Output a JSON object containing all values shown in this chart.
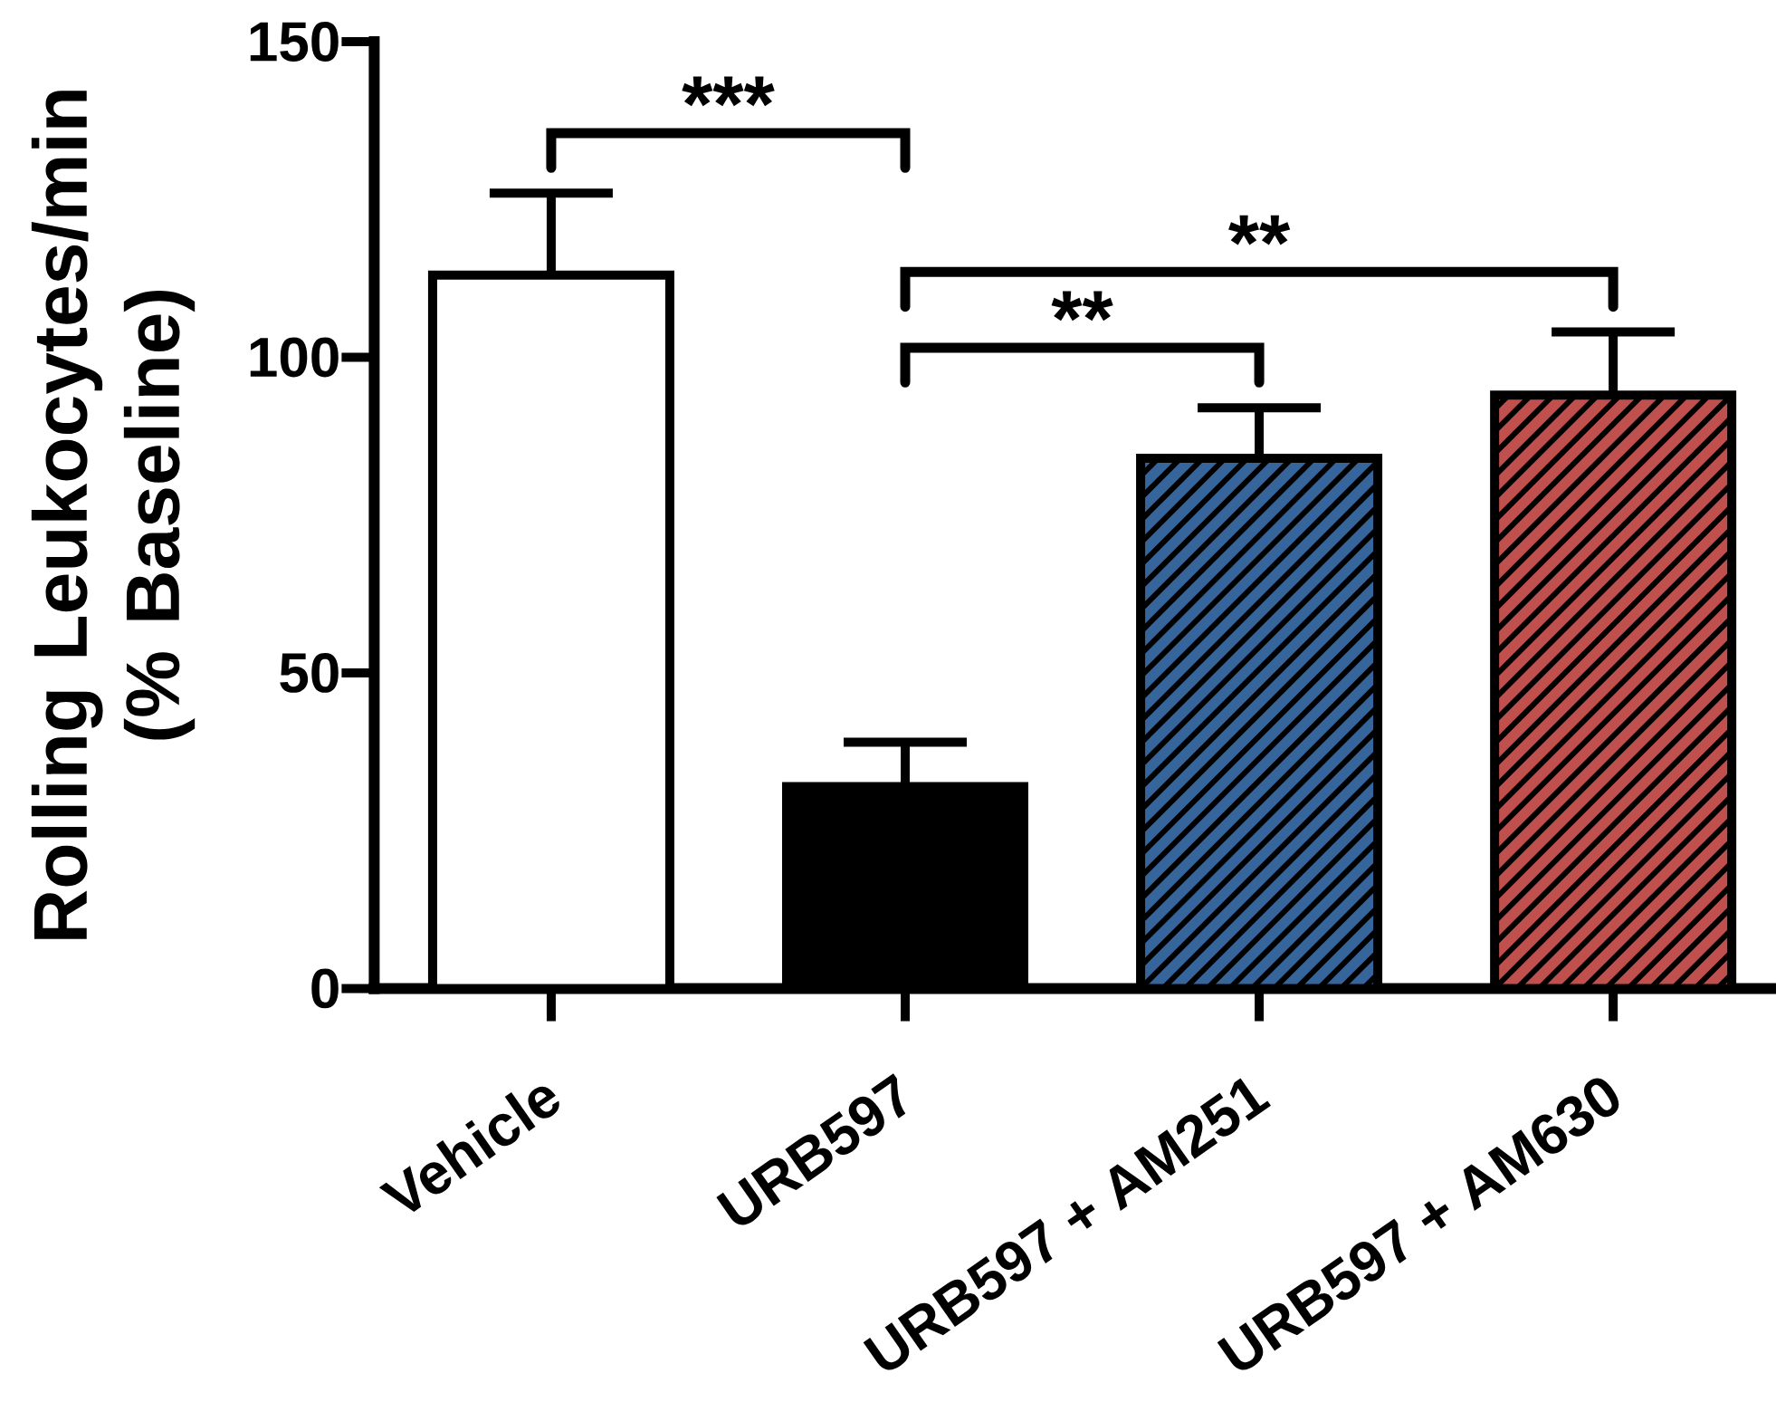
{
  "chart_data": {
    "type": "bar",
    "ylabel": "Rolling Leukocytes/min (% Baseline)",
    "categories": [
      "Vehicle",
      "URB597",
      "URB597 + AM251",
      "URB597 + AM630"
    ],
    "values": [
      113,
      32,
      84,
      94
    ],
    "colors": [
      "#ffffff",
      "#000000",
      "#35659a",
      "#c0504d"
    ],
    "errors": [
      [
        113,
        126
      ],
      [
        32,
        39
      ],
      [
        84,
        92
      ],
      [
        94,
        104
      ]
    ],
    "ylim": [
      0,
      150
    ],
    "yticks": [
      0,
      50,
      100,
      150
    ],
    "annotations": [
      "***",
      "**",
      "**"
    ]
  }
}
